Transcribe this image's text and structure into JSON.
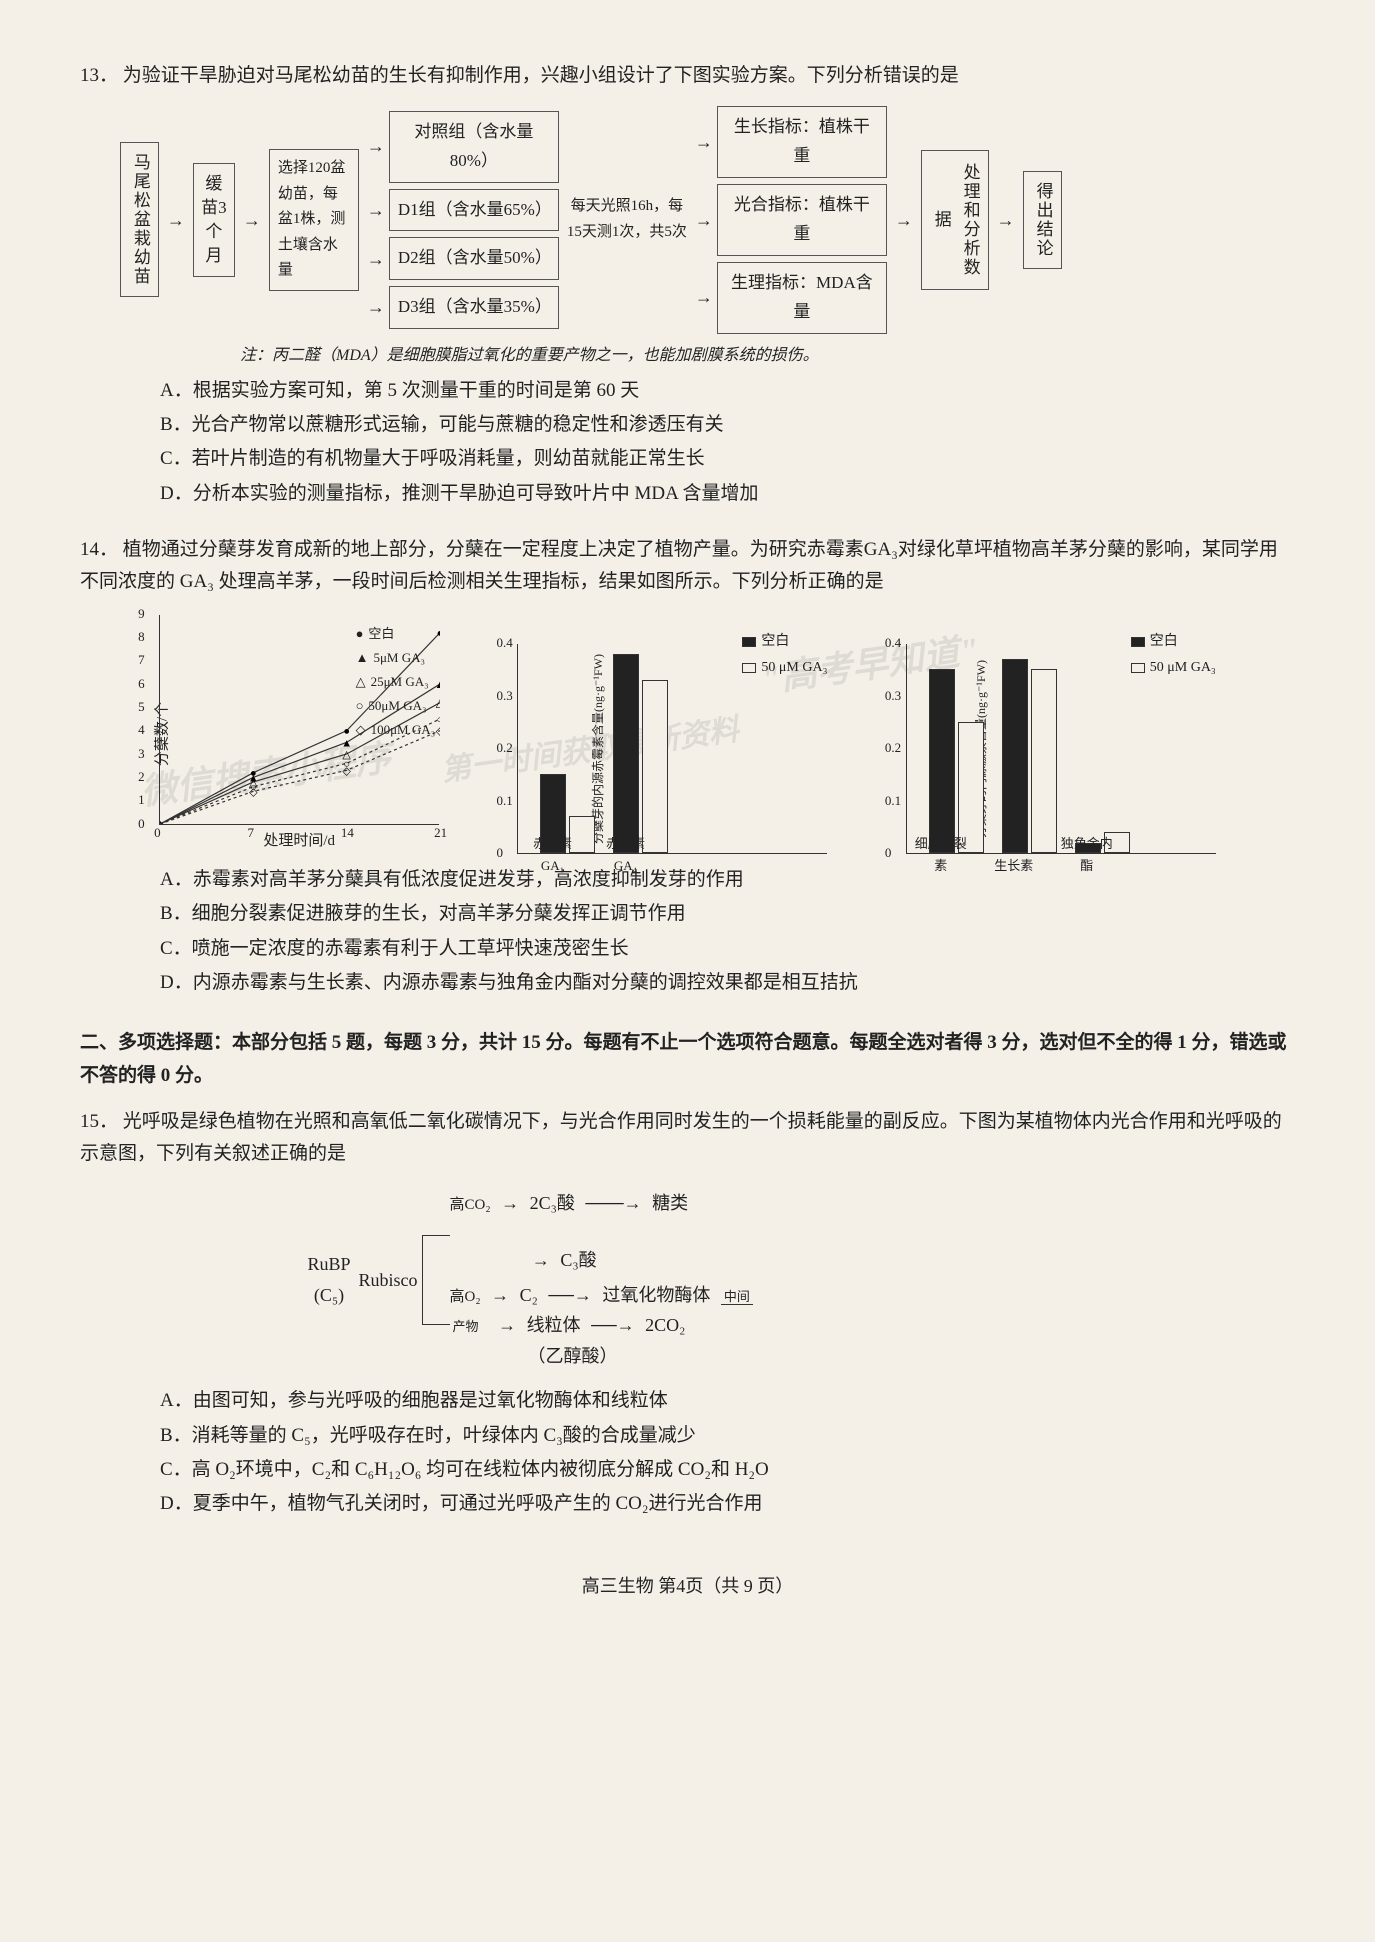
{
  "q13": {
    "number": "13．",
    "stem": "为验证干旱胁迫对马尾松幼苗的生长有抑制作用，兴趣小组设计了下图实验方案。下列分析错误的是",
    "stem_line2": "析错误的是",
    "flow": {
      "src": "马尾松盆栽幼苗",
      "cond": "缓苗3个月",
      "select": "选择120盆幼苗，每盆1株，测土壤含水量",
      "groups": [
        "对照组（含水量80%）",
        "D1组（含水量65%）",
        "D2组（含水量50%）",
        "D3组（含水量35%）"
      ],
      "measure": "每天光照16h，每15天测1次，共5次",
      "indicators": [
        "生长指标：植株干重",
        "光合指标：植株干重",
        "生理指标：MDA含量"
      ],
      "process": "处理和分析数据",
      "output": "得出结论"
    },
    "note": "注：丙二醛（MDA）是细胞膜脂过氧化的重要产物之一，也能加剧膜系统的损伤。",
    "options": {
      "A": "A．根据实验方案可知，第 5 次测量干重的时间是第 60 天",
      "B": "B．光合产物常以蔗糖形式运输，可能与蔗糖的稳定性和渗透压有关",
      "C": "C．若叶片制造的有机物量大于呼吸消耗量，则幼苗就能正常生长",
      "D": "D．分析本实验的测量指标，推测干旱胁迫可导致叶片中 MDA 含量增加"
    }
  },
  "q14": {
    "number": "14．",
    "stem": "植物通过分蘖芽发育成新的地上部分，分蘖在一定程度上决定了植物产量。为研究赤霉素GA₃对绿化草坪植物高羊茅分蘖的影响，某同学用不同浓度的 GA₃ 处理高羊茅，一段时间后检测相关生理指标，结果如图所示。下列分析正确的是",
    "line_chart": {
      "ylabel": "分蘖数/个",
      "xlabel": "处理时间/d",
      "yticks": [
        0,
        1,
        2,
        3,
        4,
        5,
        6,
        7,
        8,
        9
      ],
      "xticks": [
        0,
        7,
        14,
        21
      ],
      "series": [
        {
          "name": "空白",
          "marker": "●"
        },
        {
          "name": "5μM GA₃",
          "marker": "▲"
        },
        {
          "name": "25μM GA₃",
          "marker": "△"
        },
        {
          "name": "50μM GA₃",
          "marker": "○"
        },
        {
          "name": "100μM GA₃",
          "marker": "◇"
        }
      ],
      "lines": [
        [
          [
            0,
            0
          ],
          [
            7,
            2.2
          ],
          [
            14,
            4.0
          ],
          [
            21,
            8.2
          ]
        ],
        [
          [
            0,
            0
          ],
          [
            7,
            2.0
          ],
          [
            14,
            3.5
          ],
          [
            21,
            6.0
          ]
        ],
        [
          [
            0,
            0
          ],
          [
            7,
            1.8
          ],
          [
            14,
            3.0
          ],
          [
            21,
            5.2
          ]
        ],
        [
          [
            0,
            0
          ],
          [
            7,
            1.6
          ],
          [
            14,
            2.6
          ],
          [
            21,
            4.5
          ]
        ],
        [
          [
            0,
            0
          ],
          [
            7,
            1.4
          ],
          [
            14,
            2.3
          ],
          [
            21,
            4.0
          ]
        ]
      ]
    },
    "bar_chart1": {
      "ylabel": "分蘖芽的内源赤霉素含量(ng·g⁻¹FW)",
      "legend": [
        "空白",
        "50 μM GA₃"
      ],
      "categories": [
        "赤霉素GA₁",
        "赤霉素GA₄"
      ],
      "values": [
        [
          0.15,
          0.07
        ],
        [
          0.38,
          0.33
        ]
      ],
      "ymax": 0.4,
      "yticks": [
        0,
        0.1,
        0.2,
        0.3,
        0.4
      ]
    },
    "bar_chart2": {
      "ylabel": "分蘖芽的内源激素含量(ng·g⁻¹FW)",
      "legend": [
        "空白",
        "50 μM GA₃"
      ],
      "categories": [
        "细胞分裂素",
        "生长素",
        "独角金内酯"
      ],
      "values": [
        [
          0.35,
          0.25
        ],
        [
          0.37,
          0.35
        ],
        [
          0.02,
          0.04
        ]
      ],
      "ymax": 0.4,
      "yticks": [
        0,
        0.1,
        0.2,
        0.3,
        0.4
      ]
    },
    "options": {
      "A": "A．赤霉素对高羊茅分蘖具有低浓度促进发芽，高浓度抑制发芽的作用",
      "B": "B．细胞分裂素促进腋芽的生长，对高羊茅分蘖发挥正调节作用",
      "C": "C．喷施一定浓度的赤霉素有利于人工草坪快速茂密生长",
      "D": "D．内源赤霉素与生长素、内源赤霉素与独角金内酯对分蘖的调控效果都是相互拮抗"
    }
  },
  "section2": "二、多项选择题：本部分包括 5 题，每题 3 分，共计 15 分。每题有不止一个选项符合题意。每题全选对者得 3 分，选对但不全的得 1 分，错选或不答的得 0 分。",
  "q15": {
    "number": "15．",
    "stem": "光呼吸是绿色植物在光照和高氧低二氧化碳情况下，与光合作用同时发生的一个损耗能量的副反应。下图为某植物体内光合作用和光呼吸的示意图，下列有关叙述正确的是",
    "pathway": {
      "rubp": "RuBP",
      "c5": "(C₅)",
      "rubisco": "Rubisco",
      "highCO2": "高CO₂",
      "highO2": "高O₂",
      "c3_2": "2C₃酸",
      "c3": "C₃酸",
      "c2": "C₂",
      "ethanol": "（乙醇酸）",
      "sugar": "糖类",
      "perox": "过氧化物酶体",
      "inter": "中间产物",
      "mito": "线粒体",
      "co2_2": "2CO₂"
    },
    "options": {
      "A": "A．由图可知，参与光呼吸的细胞器是过氧化物酶体和线粒体",
      "B": "B．消耗等量的 C₅，光呼吸存在时，叶绿体内 C₃酸的合成量减少",
      "C": "C．高 O₂环境中，C₂和 C₆H₁₂O₆ 均可在线粒体内被彻底分解成 CO₂和 H₂O",
      "D": "D．夏季中午，植物气孔关闭时，可通过光呼吸产生的 CO₂进行光合作用"
    }
  },
  "footer": "高三生物  第4页（共 9 页）",
  "watermarks": [
    "微信搜索小程序",
    "\"高考早知道\"",
    "第一时间获取最新资料"
  ],
  "colors": {
    "bg": "#f4f0e8",
    "text": "#222222",
    "border": "#555555"
  }
}
